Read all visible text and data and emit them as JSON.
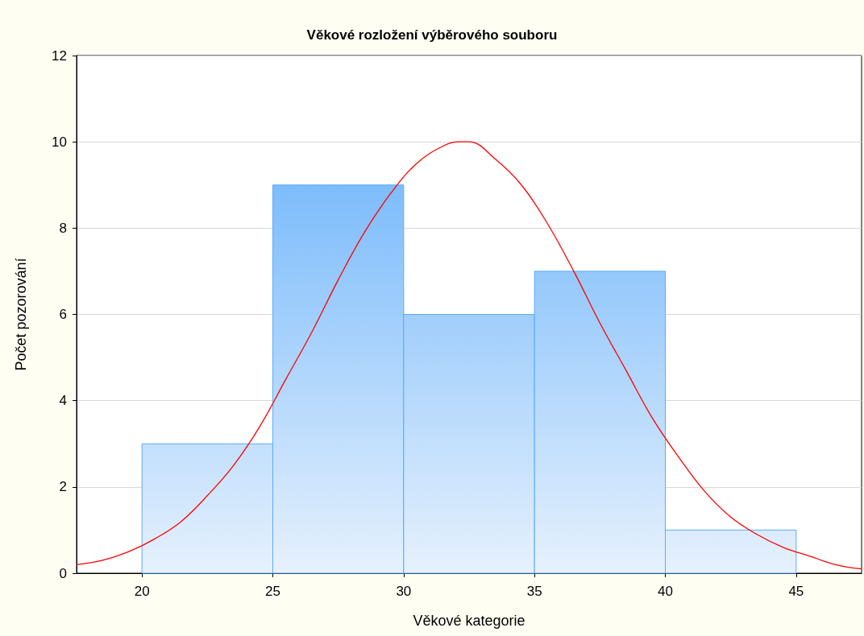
{
  "chart_data": {
    "type": "histogram",
    "title": "Věkové rozložení výběrového souboru",
    "xlabel": "Věkové kategorie",
    "ylabel": "Počet pozorování",
    "series": [
      {
        "bins": [
          20,
          25,
          30,
          35,
          40,
          45
        ],
        "values": [
          3,
          9,
          6,
          7,
          1
        ],
        "color": "#5aabfb"
      },
      {
        "type": "line",
        "color": "#ff0000",
        "x": [
          17.5,
          18.5,
          19.5,
          20.5,
          21.5,
          22.5,
          23.5,
          24.5,
          25.5,
          26.5,
          27.5,
          28.5,
          29.5,
          30.5,
          31.5,
          32.1,
          32.5,
          33.5,
          34.5,
          35.5,
          36.5,
          37.5,
          38.5,
          39.5,
          40.5,
          41.5,
          42.5,
          43.5,
          44.5,
          45.5,
          46.5,
          47.5
        ],
        "values": [
          0.2,
          0.3,
          0.5,
          0.8,
          1.2,
          1.8,
          2.5,
          3.4,
          4.5,
          5.6,
          6.8,
          7.9,
          8.8,
          9.5,
          9.9,
          10,
          10,
          9.6,
          9,
          8.1,
          7,
          5.8,
          4.7,
          3.6,
          2.7,
          1.9,
          1.3,
          0.9,
          0.6,
          0.4,
          0.2,
          0.1
        ]
      }
    ],
    "xlim": [
      17.5,
      47.5
    ],
    "xticks": [
      20,
      25,
      30,
      35,
      40,
      45
    ],
    "ylim": [
      0,
      12
    ],
    "yticks": [
      0,
      2,
      4,
      6,
      8,
      10,
      12
    ],
    "grid": "y",
    "marker": "none",
    "line_style": "solid"
  }
}
